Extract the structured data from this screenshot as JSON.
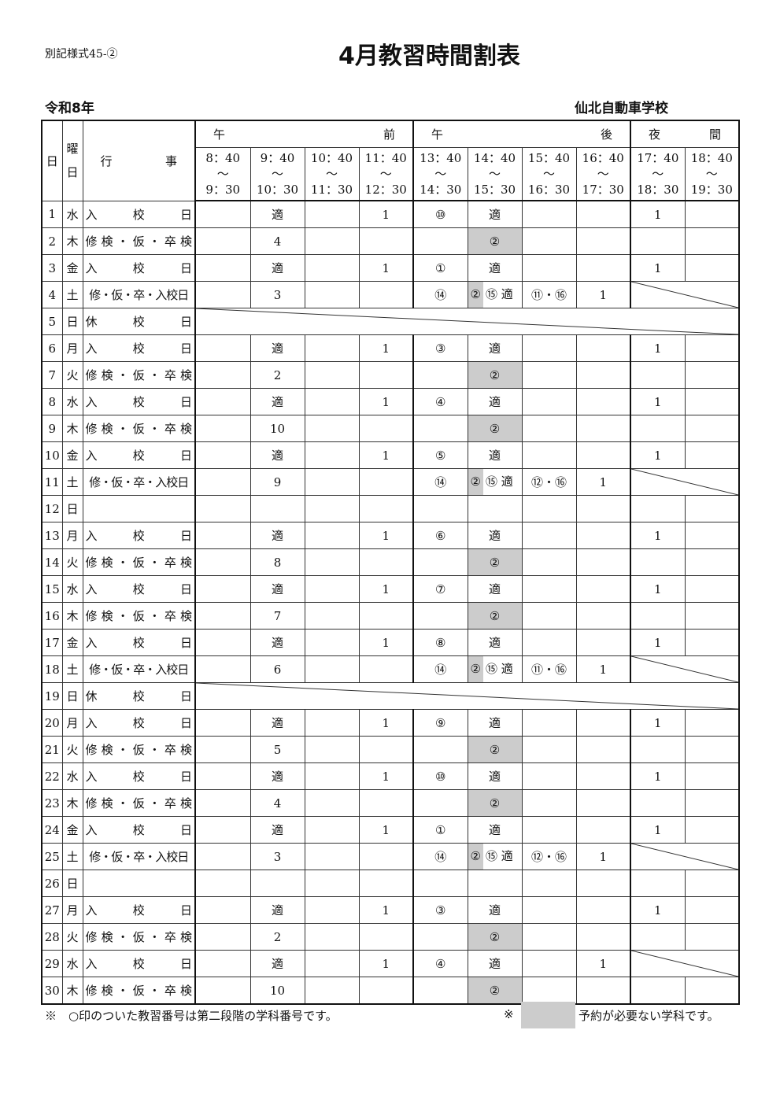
{
  "form_number": "別記様式45-②",
  "title": "4月教習時間割表",
  "year": "令和8年",
  "school": "仙北自動車学校",
  "header": {
    "day": "日",
    "weekday": "曜日",
    "event": "行事",
    "groups": [
      {
        "label": "午前",
        "span": 4
      },
      {
        "label": "午後",
        "span": 4
      },
      {
        "label": "夜間",
        "span": 2
      }
    ],
    "times": [
      {
        "start": "8：40",
        "end": "9：30"
      },
      {
        "start": "9：40",
        "end": "10：30"
      },
      {
        "start": "10：40",
        "end": "11：30"
      },
      {
        "start": "11：40",
        "end": "12：30"
      },
      {
        "start": "13：40",
        "end": "14：30"
      },
      {
        "start": "14：40",
        "end": "15：30"
      },
      {
        "start": "15：40",
        "end": "16：30"
      },
      {
        "start": "16：40",
        "end": "17：30"
      },
      {
        "start": "17：40",
        "end": "18：30"
      },
      {
        "start": "18：40",
        "end": "19：30"
      }
    ],
    "tilde": "～"
  },
  "rows": [
    {
      "day": "1",
      "dow": "水",
      "event": "入校日",
      "cells": [
        "",
        "適",
        "",
        "1",
        "⑩",
        "適",
        "",
        "",
        "1",
        ""
      ]
    },
    {
      "day": "2",
      "dow": "木",
      "event": "修検・仮・卒検",
      "cells": [
        "",
        "4",
        "",
        "",
        "",
        {
          "text": "②",
          "gray": true
        },
        "",
        "",
        "",
        ""
      ]
    },
    {
      "day": "3",
      "dow": "金",
      "event": "入校日",
      "cells": [
        "",
        "適",
        "",
        "1",
        "①",
        "適",
        "",
        "",
        "1",
        ""
      ]
    },
    {
      "day": "4",
      "dow": "土",
      "event": "修・仮・卒・入校日",
      "tight": true,
      "cells": [
        "",
        "3",
        "",
        "",
        "⑭",
        {
          "gray_prefix": "②",
          "text": "⑮ 適"
        },
        "⑪・⑯",
        "1"
      ],
      "diag": "night"
    },
    {
      "day": "5",
      "dow": "日",
      "event": "休校日",
      "cells": [],
      "diag": "all"
    },
    {
      "day": "6",
      "dow": "月",
      "event": "入校日",
      "cells": [
        "",
        "適",
        "",
        "1",
        "③",
        "適",
        "",
        "",
        "1",
        ""
      ]
    },
    {
      "day": "7",
      "dow": "火",
      "event": "修検・仮・卒検",
      "cells": [
        "",
        "2",
        "",
        "",
        "",
        {
          "text": "②",
          "gray": true
        },
        "",
        "",
        "",
        ""
      ]
    },
    {
      "day": "8",
      "dow": "水",
      "event": "入校日",
      "cells": [
        "",
        "適",
        "",
        "1",
        "④",
        "適",
        "",
        "",
        "1",
        ""
      ]
    },
    {
      "day": "9",
      "dow": "木",
      "event": "修検・仮・卒検",
      "cells": [
        "",
        "10",
        "",
        "",
        "",
        {
          "text": "②",
          "gray": true
        },
        "",
        "",
        "",
        ""
      ]
    },
    {
      "day": "10",
      "dow": "金",
      "event": "入校日",
      "cells": [
        "",
        "適",
        "",
        "1",
        "⑤",
        "適",
        "",
        "",
        "1",
        ""
      ]
    },
    {
      "day": "11",
      "dow": "土",
      "event": "修・仮・卒・入校日",
      "tight": true,
      "cells": [
        "",
        "9",
        "",
        "",
        "⑭",
        {
          "gray_prefix": "②",
          "text": "⑮ 適"
        },
        "⑫・⑯",
        "1"
      ],
      "diag": "night"
    },
    {
      "day": "12",
      "dow": "日",
      "event": "",
      "cells": [
        "",
        "",
        "",
        "",
        "",
        "",
        "",
        "",
        "",
        ""
      ]
    },
    {
      "day": "13",
      "dow": "月",
      "event": "入校日",
      "cells": [
        "",
        "適",
        "",
        "1",
        "⑥",
        "適",
        "",
        "",
        "1",
        ""
      ]
    },
    {
      "day": "14",
      "dow": "火",
      "event": "修検・仮・卒検",
      "cells": [
        "",
        "8",
        "",
        "",
        "",
        {
          "text": "②",
          "gray": true
        },
        "",
        "",
        "",
        ""
      ]
    },
    {
      "day": "15",
      "dow": "水",
      "event": "入校日",
      "cells": [
        "",
        "適",
        "",
        "1",
        "⑦",
        "適",
        "",
        "",
        "1",
        ""
      ]
    },
    {
      "day": "16",
      "dow": "木",
      "event": "修検・仮・卒検",
      "cells": [
        "",
        "7",
        "",
        "",
        "",
        {
          "text": "②",
          "gray": true
        },
        "",
        "",
        "",
        ""
      ]
    },
    {
      "day": "17",
      "dow": "金",
      "event": "入校日",
      "cells": [
        "",
        "適",
        "",
        "1",
        "⑧",
        "適",
        "",
        "",
        "1",
        ""
      ]
    },
    {
      "day": "18",
      "dow": "土",
      "event": "修・仮・卒・入校日",
      "tight": true,
      "cells": [
        "",
        "6",
        "",
        "",
        "⑭",
        {
          "gray_prefix": "②",
          "text": "⑮ 適"
        },
        "⑪・⑯",
        "1"
      ],
      "diag": "night"
    },
    {
      "day": "19",
      "dow": "日",
      "event": "休校日",
      "cells": [],
      "diag": "all"
    },
    {
      "day": "20",
      "dow": "月",
      "event": "入校日",
      "cells": [
        "",
        "適",
        "",
        "1",
        "⑨",
        "適",
        "",
        "",
        "1",
        ""
      ]
    },
    {
      "day": "21",
      "dow": "火",
      "event": "修検・仮・卒検",
      "cells": [
        "",
        "5",
        "",
        "",
        "",
        {
          "text": "②",
          "gray": true
        },
        "",
        "",
        "",
        ""
      ]
    },
    {
      "day": "22",
      "dow": "水",
      "event": "入校日",
      "cells": [
        "",
        "適",
        "",
        "1",
        "⑩",
        "適",
        "",
        "",
        "1",
        ""
      ]
    },
    {
      "day": "23",
      "dow": "木",
      "event": "修検・仮・卒検",
      "cells": [
        "",
        "4",
        "",
        "",
        "",
        {
          "text": "②",
          "gray": true
        },
        "",
        "",
        "",
        ""
      ]
    },
    {
      "day": "24",
      "dow": "金",
      "event": "入校日",
      "cells": [
        "",
        "適",
        "",
        "1",
        "①",
        "適",
        "",
        "",
        "1",
        ""
      ]
    },
    {
      "day": "25",
      "dow": "土",
      "event": "修・仮・卒・入校日",
      "tight": true,
      "cells": [
        "",
        "3",
        "",
        "",
        "⑭",
        {
          "gray_prefix": "②",
          "text": "⑮ 適"
        },
        "⑫・⑯",
        "1"
      ],
      "diag": "night"
    },
    {
      "day": "26",
      "dow": "日",
      "event": "",
      "cells": [
        "",
        "",
        "",
        "",
        "",
        "",
        "",
        "",
        "",
        ""
      ]
    },
    {
      "day": "27",
      "dow": "月",
      "event": "入校日",
      "cells": [
        "",
        "適",
        "",
        "1",
        "③",
        "適",
        "",
        "",
        "1",
        ""
      ]
    },
    {
      "day": "28",
      "dow": "火",
      "event": "修検・仮・卒検",
      "cells": [
        "",
        "2",
        "",
        "",
        "",
        {
          "text": "②",
          "gray": true
        },
        "",
        "",
        "",
        ""
      ]
    },
    {
      "day": "29",
      "dow": "水",
      "event": "入校日",
      "cells": [
        "",
        "適",
        "",
        "1",
        "④",
        "適",
        "",
        "1"
      ],
      "diag": "night"
    },
    {
      "day": "30",
      "dow": "木",
      "event": "修検・仮・卒検",
      "cells": [
        "",
        "10",
        "",
        "",
        "",
        {
          "text": "②",
          "gray": true
        },
        "",
        "",
        "",
        ""
      ]
    }
  ],
  "footer": {
    "note": "※　○印のついた教習番号は第二段階の学科番号です。",
    "legend_mark": "※",
    "legend_text": "予約が必要ない学科です。",
    "legend_color": "#cccccc"
  }
}
